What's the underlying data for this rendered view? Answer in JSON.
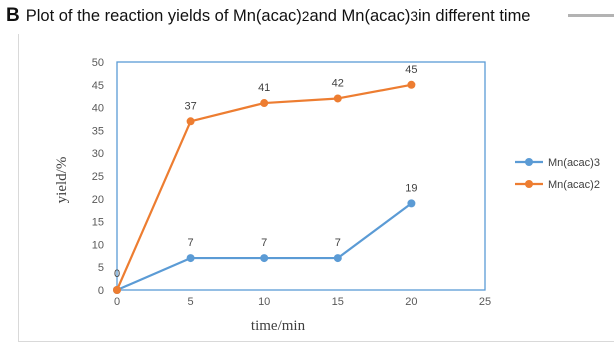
{
  "figure": {
    "panel_letter": "B",
    "title_prefix": "Plot of the reaction yields of Mn(acac)",
    "title_sub1": "2",
    "title_middle": " and Mn(acac)",
    "title_sub2": "3",
    "title_suffix": " in different time"
  },
  "chart_data": {
    "type": "line",
    "title": "",
    "xlabel": "time/min",
    "ylabel": "yield/%",
    "xlim": [
      0,
      25
    ],
    "ylim": [
      0,
      50
    ],
    "x_ticks": [
      0,
      5,
      10,
      15,
      20,
      25
    ],
    "y_ticks": [
      0,
      5,
      10,
      15,
      20,
      25,
      30,
      35,
      40,
      45,
      50
    ],
    "legend_position": "right",
    "series": [
      {
        "name": "Mn(acac)3",
        "color": "#5b9bd5",
        "x": [
          0,
          5,
          10,
          15,
          20
        ],
        "y": [
          0,
          7,
          7,
          7,
          19
        ]
      },
      {
        "name": "Mn(acac)2",
        "color": "#ed7d31",
        "x": [
          0,
          5,
          10,
          15,
          20
        ],
        "y": [
          0,
          37,
          41,
          42,
          45
        ]
      }
    ],
    "plot_border_color": "#5b9bd5"
  }
}
